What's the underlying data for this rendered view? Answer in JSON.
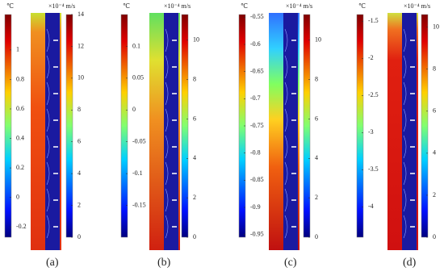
{
  "panels": [
    {
      "label": "(a)",
      "temperature_bar": {
        "unit": "℃",
        "lim": [
          -0.27,
          1.24
        ],
        "ticks": [
          1,
          0.8,
          0.6,
          0.4,
          0.2,
          0,
          -0.2
        ]
      },
      "velocity_bar": {
        "unit": "×10⁻⁴ m/s",
        "lim": [
          0,
          14
        ],
        "ticks": [
          14,
          12,
          10,
          8,
          6,
          4,
          2,
          0
        ]
      }
    },
    {
      "label": "(b)",
      "temperature_bar": {
        "unit": "℃",
        "lim": [
          -0.2,
          0.15
        ],
        "ticks": [
          0.1,
          0.05,
          0,
          -0.05,
          -0.1,
          -0.15
        ]
      },
      "velocity_bar": {
        "unit": "×10⁻⁴ m/s",
        "lim": [
          0,
          11.3
        ],
        "ticks": [
          10,
          8,
          6,
          4,
          2,
          0
        ]
      }
    },
    {
      "label": "(c)",
      "temperature_bar": {
        "unit": "℃",
        "lim": [
          -0.955,
          -0.545
        ],
        "ticks": [
          -0.55,
          -0.6,
          -0.65,
          -0.7,
          -0.75,
          -0.8,
          -0.85,
          -0.9,
          -0.95
        ]
      },
      "velocity_bar": {
        "unit": "×10⁻⁴ m/s",
        "lim": [
          0,
          11.3
        ],
        "ticks": [
          10,
          8,
          6,
          4,
          2,
          0
        ]
      }
    },
    {
      "label": "(d)",
      "temperature_bar": {
        "unit": "℃",
        "lim": [
          -4.41,
          -1.41
        ],
        "ticks": [
          -1.5,
          -2,
          -2.5,
          -3,
          -3.5,
          -4
        ]
      },
      "velocity_bar": {
        "unit": "×10⁻⁴ m/s",
        "lim": [
          0,
          10.6
        ],
        "ticks": [
          10,
          8,
          6,
          4,
          2,
          0
        ]
      }
    }
  ]
}
